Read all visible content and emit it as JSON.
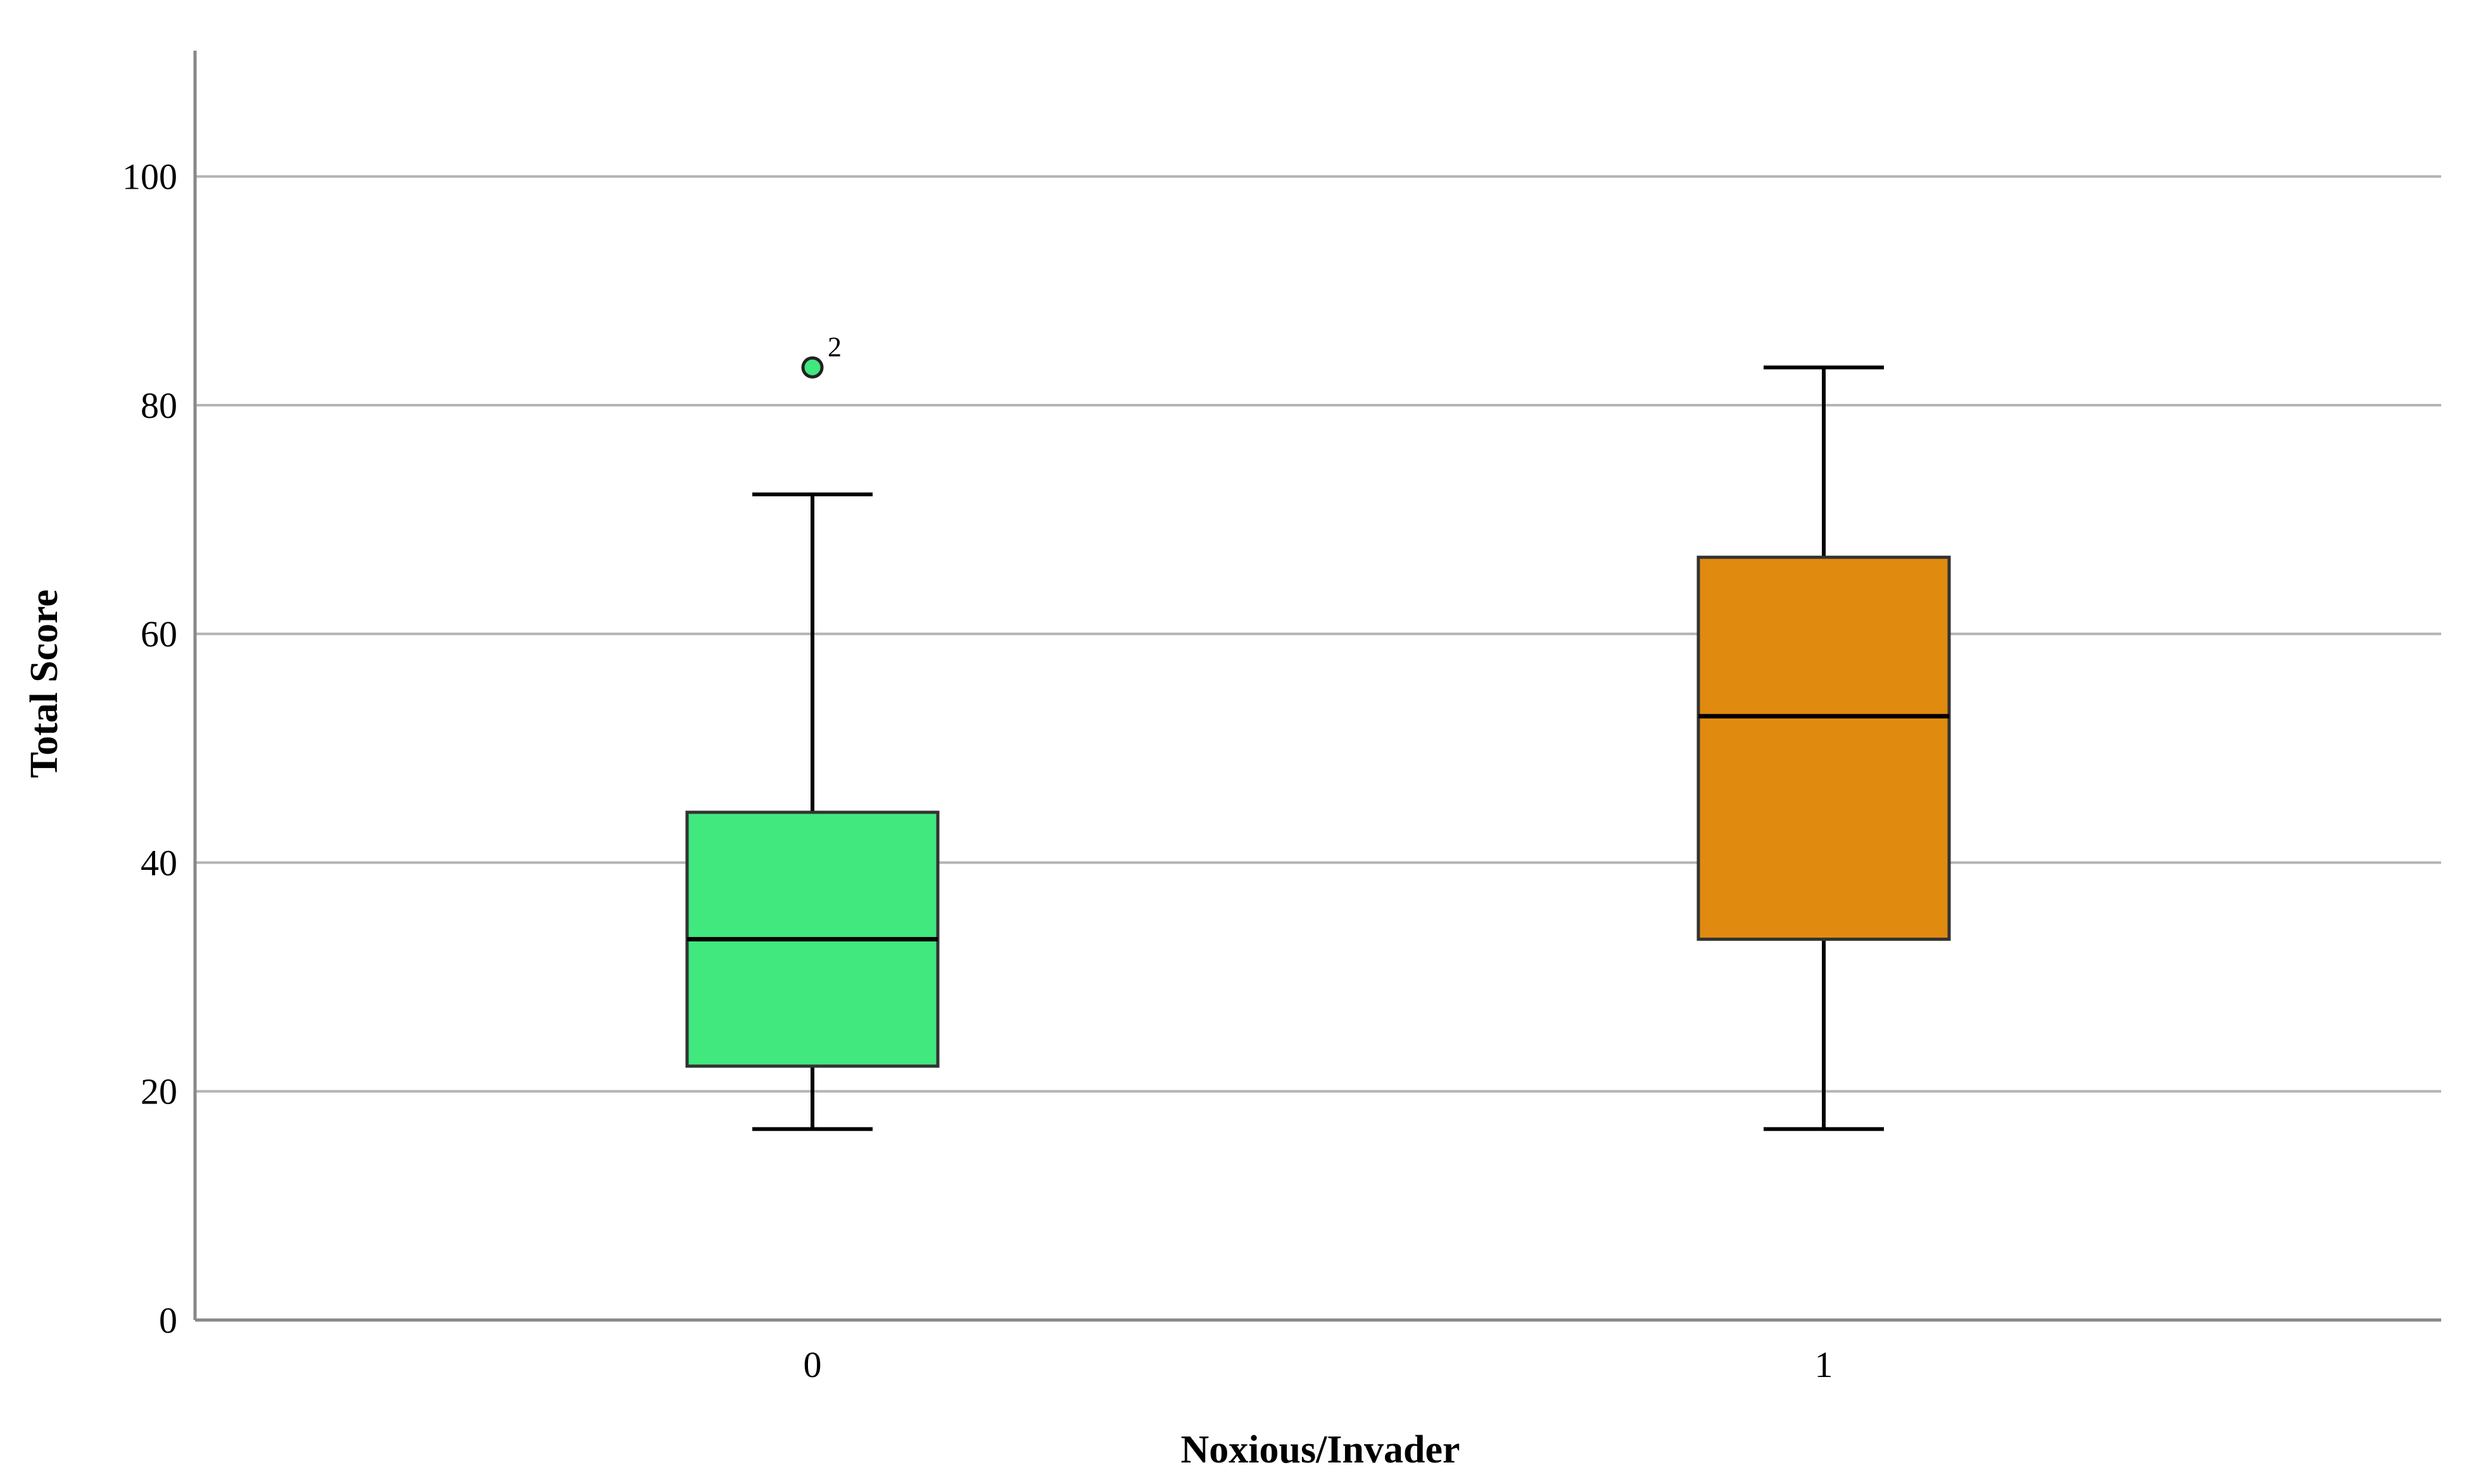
{
  "chart_data": {
    "type": "box",
    "xlabel": "Noxious/Invader",
    "ylabel": "Total Score",
    "ylim": [
      0,
      111
    ],
    "yticks": [
      0,
      20,
      40,
      60,
      80,
      100
    ],
    "grid": true,
    "categories": [
      "0",
      "1"
    ],
    "boxes": [
      {
        "category": "0",
        "color": "#40E87E",
        "whisker_low": 16.7,
        "q1": 22.2,
        "median": 33.3,
        "q3": 44.4,
        "whisker_high": 72.2,
        "outliers": [
          {
            "value": 83.3,
            "label": "2"
          }
        ]
      },
      {
        "category": "1",
        "color": "#E08A10",
        "whisker_low": 16.7,
        "q1": 33.3,
        "median": 52.8,
        "q3": 66.7,
        "whisker_high": 83.3,
        "outliers": []
      }
    ]
  }
}
